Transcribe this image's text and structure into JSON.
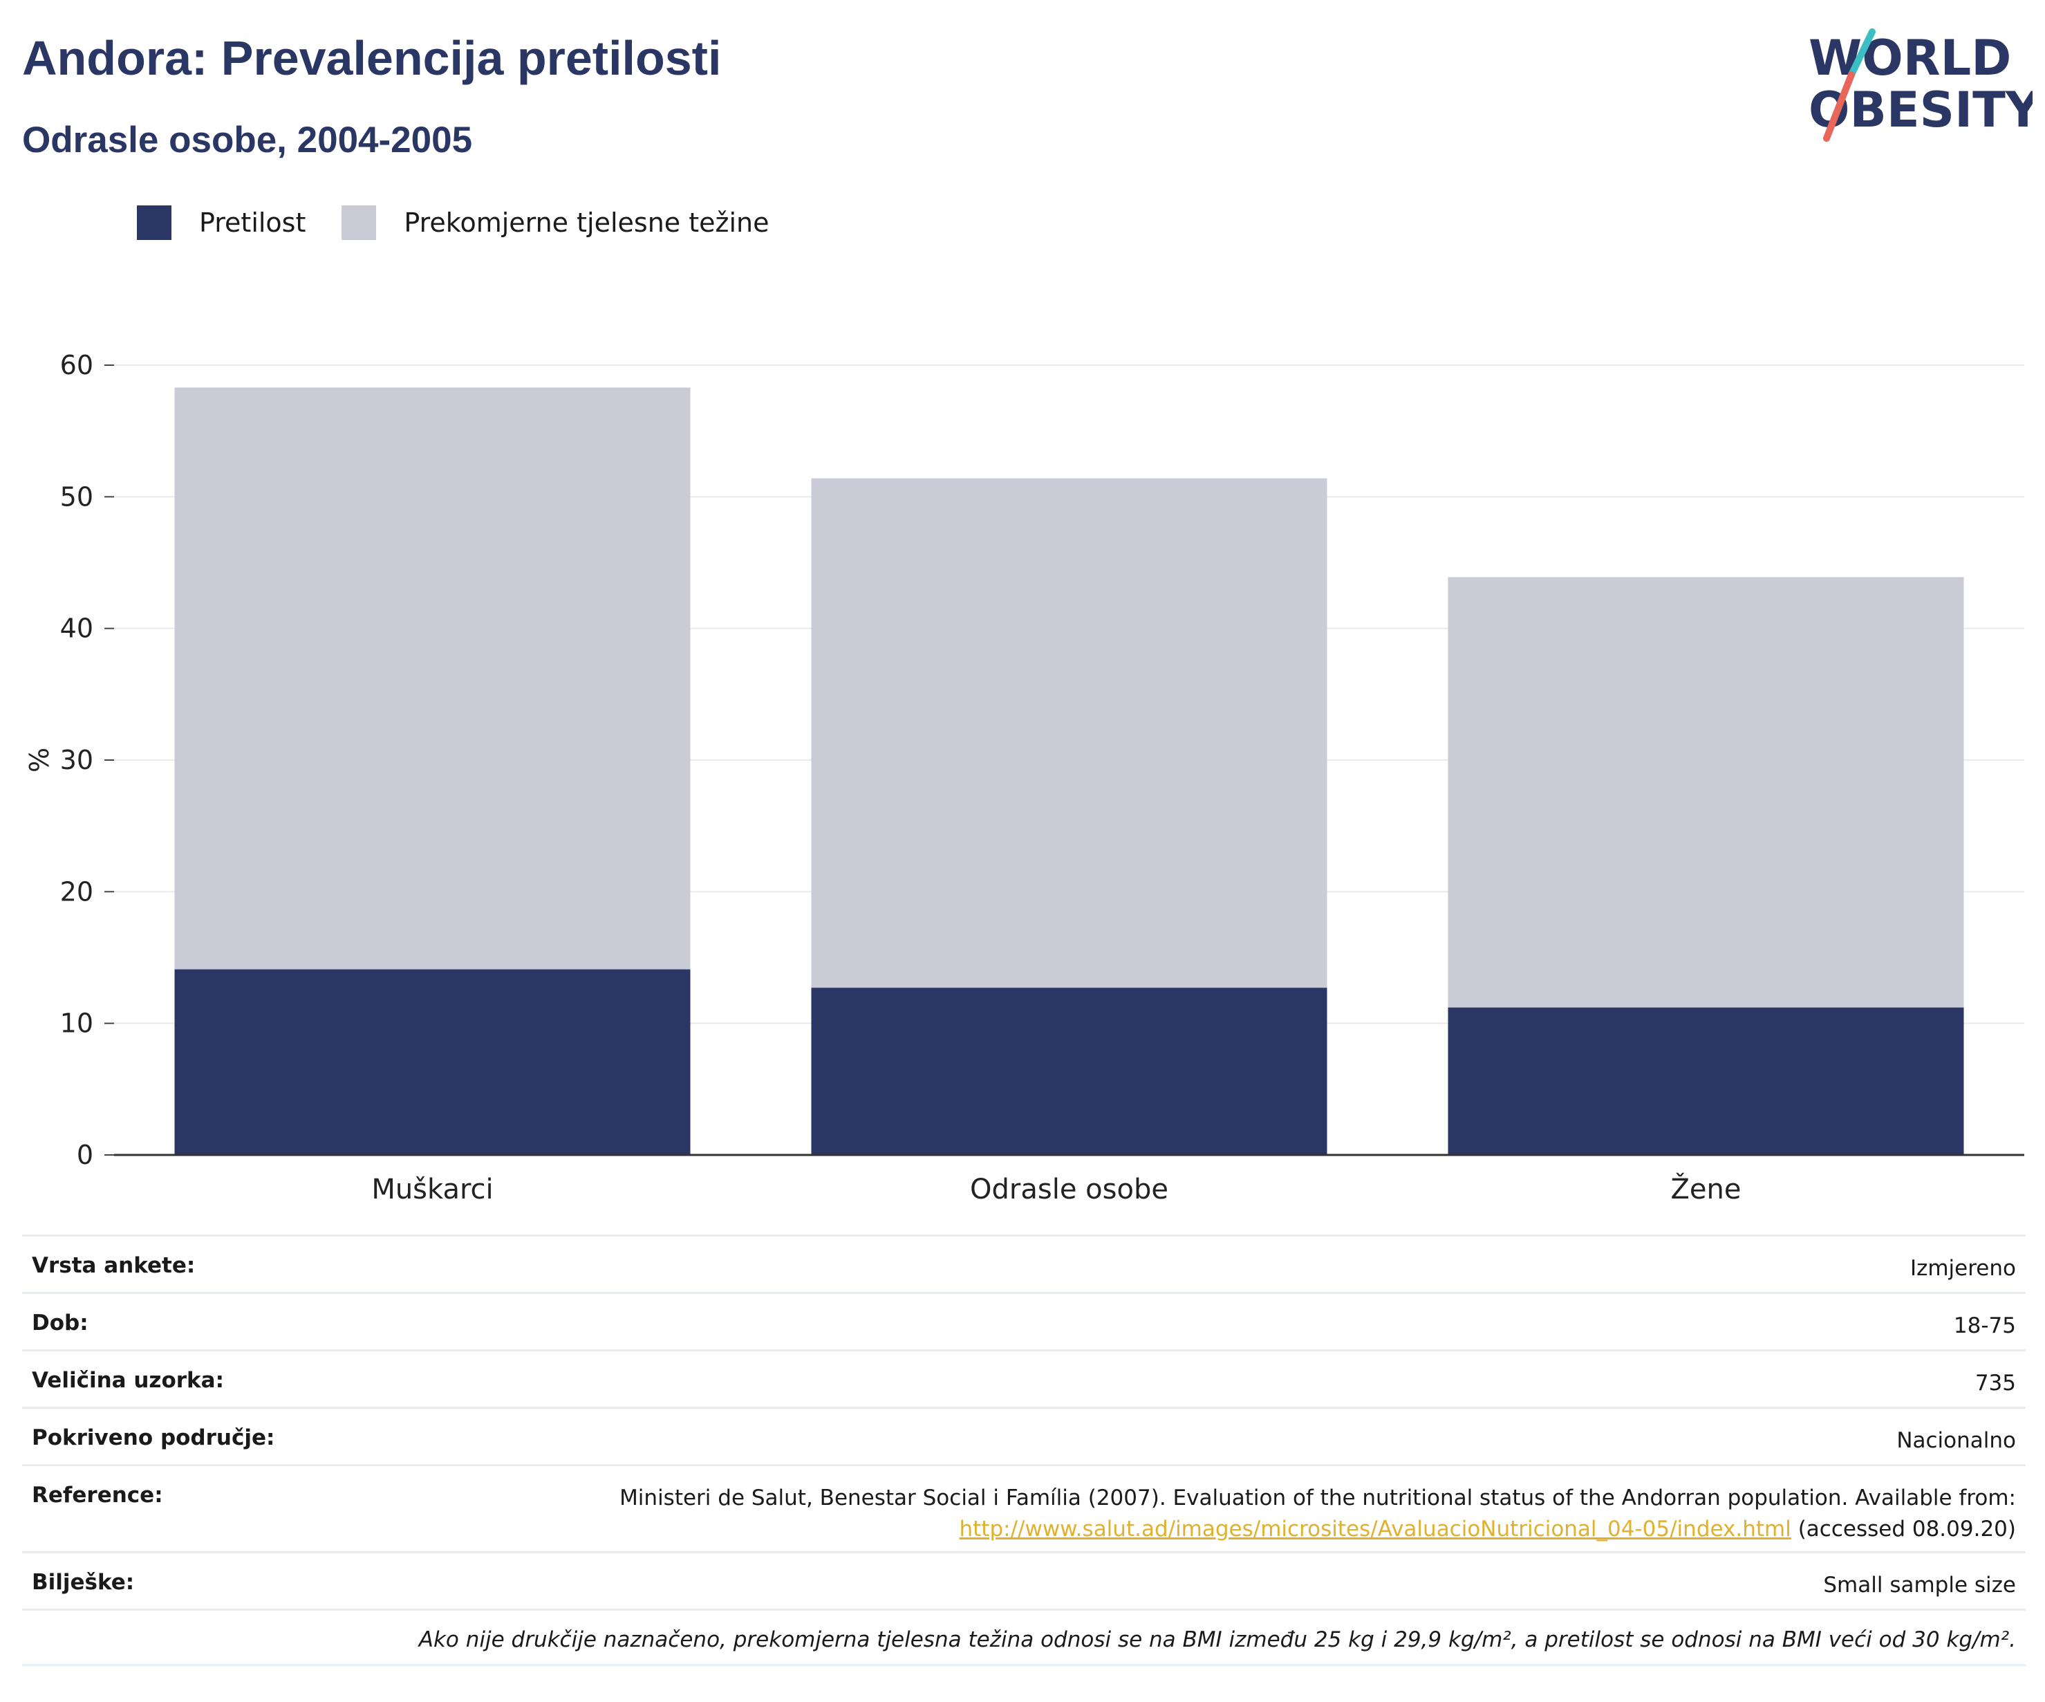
{
  "header": {
    "title": "Andora: Prevalencija pretilosti",
    "subtitle": "Odrasle osobe, 2004-2005"
  },
  "logo": {
    "line1": "WORLD",
    "line2": "OBESITY",
    "accent_teal": "#3bbfc4",
    "accent_coral": "#e8675a"
  },
  "legend": [
    {
      "label": "Pretilost",
      "color": "#2a3663"
    },
    {
      "label": "Prekomjerne tjelesne težine",
      "color": "#cacbd7"
    }
  ],
  "chart_data": {
    "type": "bar",
    "stacked": false,
    "categories": [
      "Muškarci",
      "Odrasle osobe",
      "Žene"
    ],
    "series": [
      {
        "name": "Prekomjerne tjelesne težine",
        "color": "#cacbd7",
        "values": [
          58.3,
          51.4,
          43.9
        ]
      },
      {
        "name": "Pretilost",
        "color": "#2a3663",
        "values": [
          14.1,
          12.7,
          11.2
        ]
      }
    ],
    "ylabel": "%",
    "ylim": [
      0,
      60
    ],
    "yticks": [
      0,
      10,
      20,
      30,
      40,
      50,
      60
    ],
    "grid": true,
    "legend_position": "top-left"
  },
  "meta": {
    "rows": [
      {
        "key": "Vrsta ankete:",
        "value": "Izmjereno"
      },
      {
        "key": "Dob:",
        "value": "18-75"
      },
      {
        "key": "Veličina uzorka:",
        "value": "735"
      },
      {
        "key": "Pokriveno područje:",
        "value": "Nacionalno"
      }
    ],
    "reference_key": "Reference:",
    "reference_text": "Ministeri de Salut, Benestar Social i Família (2007). Evaluation of the nutritional status of the Andorran population. Available from:",
    "reference_link": "http://www.salut.ad/images/microsites/AvaluacioNutricional_04-05/index.html",
    "reference_suffix": " (accessed 08.09.20)",
    "notes_key": "Bilješke:",
    "notes_value": "Small sample size",
    "footnote": "Ako nije drukčije naznačeno, prekomjerna tjelesna težina odnosi se na BMI između 25 kg i 29,9 kg/m², a pretilost se odnosi na BMI veći od 30 kg/m²."
  }
}
